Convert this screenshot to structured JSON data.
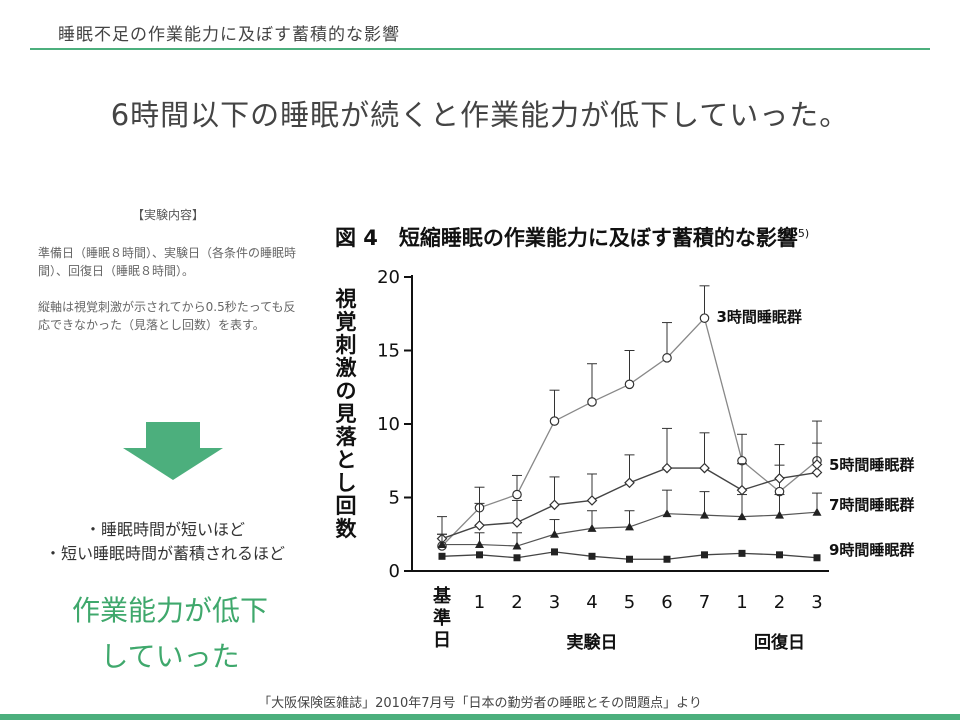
{
  "header": {
    "title": "睡眠不足の作業能力に及ぼす蓄積的な影響"
  },
  "headline": "6時間以下の睡眠が続くと作業能力が低下していった。",
  "experiment": {
    "heading": "【実験内容】",
    "paragraph1": "準備日（睡眠８時間）、実験日（各条件の睡眠時間）、回復日（睡眠８時間）。",
    "paragraph2": "縦軸は視覚刺激が示されてから0.5秒たっても反応できなかった（見落とし回数）を表す。"
  },
  "conditions": [
    "・睡眠時間が短いほど",
    "・短い睡眠時間が蓄積されるほど"
  ],
  "conclusion": [
    "作業能力が低下",
    "していった"
  ],
  "source": "「大阪保険医雑誌」2010年7月号「日本の勤労者の睡眠とその問題点」より",
  "colors": {
    "accent": "#4caf7d",
    "conclusion": "#3fa86c"
  },
  "chart_data": {
    "type": "line",
    "title": "図 4　短縮睡眠の作業能力に及ぼす蓄積的な影響",
    "title_ref": "5)",
    "ylabel": "視覚刺激の見落とし回数",
    "ylim": [
      0,
      20
    ],
    "yticks": [
      0,
      5,
      10,
      15,
      20
    ],
    "x": [
      "基準日",
      "1",
      "2",
      "3",
      "4",
      "5",
      "6",
      "7",
      "1",
      "2",
      "3"
    ],
    "groups": [
      {
        "label": "実験日",
        "from": 1,
        "to": 7
      },
      {
        "label": "回復日",
        "from": 8,
        "to": 10
      }
    ],
    "series": [
      {
        "name": "3時間睡眠群",
        "marker": "open-circle",
        "values": [
          1.7,
          4.3,
          5.2,
          10.2,
          11.5,
          12.7,
          14.5,
          17.2,
          7.5,
          5.4,
          7.5
        ],
        "err": [
          0.8,
          1.4,
          1.3,
          2.1,
          2.6,
          2.3,
          2.4,
          2.2,
          1.8,
          1.8,
          2.7
        ]
      },
      {
        "name": "5時間睡眠群",
        "marker": "open-diamond",
        "values": [
          2.2,
          3.1,
          3.3,
          4.5,
          4.8,
          6.0,
          7.0,
          7.0,
          5.5,
          6.3,
          6.7
        ],
        "err": [
          1.5,
          1.5,
          1.5,
          1.9,
          1.8,
          1.9,
          2.7,
          2.4,
          1.8,
          2.3,
          2.0
        ]
      },
      {
        "name": "7時間睡眠群",
        "marker": "filled-triangle",
        "values": [
          1.8,
          1.8,
          1.7,
          2.5,
          2.9,
          3.0,
          3.9,
          3.8,
          3.7,
          3.8,
          4.0
        ],
        "err": [
          0.7,
          0.8,
          0.9,
          1.0,
          1.2,
          1.1,
          1.6,
          1.6,
          1.5,
          1.4,
          1.3
        ]
      },
      {
        "name": "9時間睡眠群",
        "marker": "filled-square",
        "values": [
          1.0,
          1.1,
          0.9,
          1.3,
          1.0,
          0.8,
          0.8,
          1.1,
          1.2,
          1.1,
          0.9
        ],
        "err": [
          0,
          0,
          0,
          0,
          0,
          0,
          0,
          0,
          0,
          0,
          0
        ]
      }
    ]
  }
}
